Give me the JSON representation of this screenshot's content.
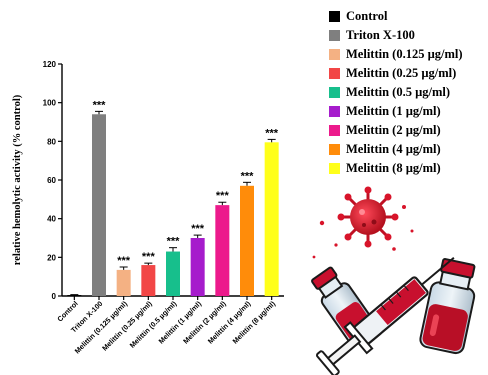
{
  "chart_data": {
    "type": "bar",
    "ylabel": "relative hemolytic activity (% control)",
    "ylim": [
      0,
      120
    ],
    "yticks": [
      0,
      20,
      40,
      60,
      80,
      100,
      120
    ],
    "categories": [
      "Control",
      "Triton X-100",
      "Melittin (0.125 µg/ml)",
      "Melittin (0.25 µg/ml)",
      "Melittin (0.5 µg/ml)",
      "Melittin (1 µg/ml)",
      "Melittin (2 µg/ml)",
      "Melittin (4 µg/ml)",
      "Melittin (8 µg/ml)"
    ],
    "values": [
      0.5,
      94,
      13.5,
      16,
      23,
      30,
      47,
      57,
      79.5
    ],
    "errors": [
      0.2,
      1.5,
      1.5,
      1,
      2,
      1.5,
      1.5,
      1.8,
      1.5
    ],
    "colors": [
      "#000000",
      "#7f7f7f",
      "#f4b183",
      "#f24646",
      "#17bf8c",
      "#a61ccc",
      "#ec1a8c",
      "#ff8c0a",
      "#ffff1a"
    ],
    "significance": [
      "",
      "***",
      "***",
      "***",
      "***",
      "***",
      "***",
      "***",
      "***"
    ],
    "legend": [
      "Control",
      "Triton X-100",
      "Melittin (0.125 µg/ml)",
      "Melittin (0.25 µg/ml)",
      "Melittin (0.5 µg/ml)",
      "Melittin (1 µg/ml)",
      "Melittin (2 µg/ml)",
      "Melittin (4 µg/ml)",
      "Melittin (8 µg/ml)"
    ],
    "legend_position": "top-right",
    "grid": false
  }
}
